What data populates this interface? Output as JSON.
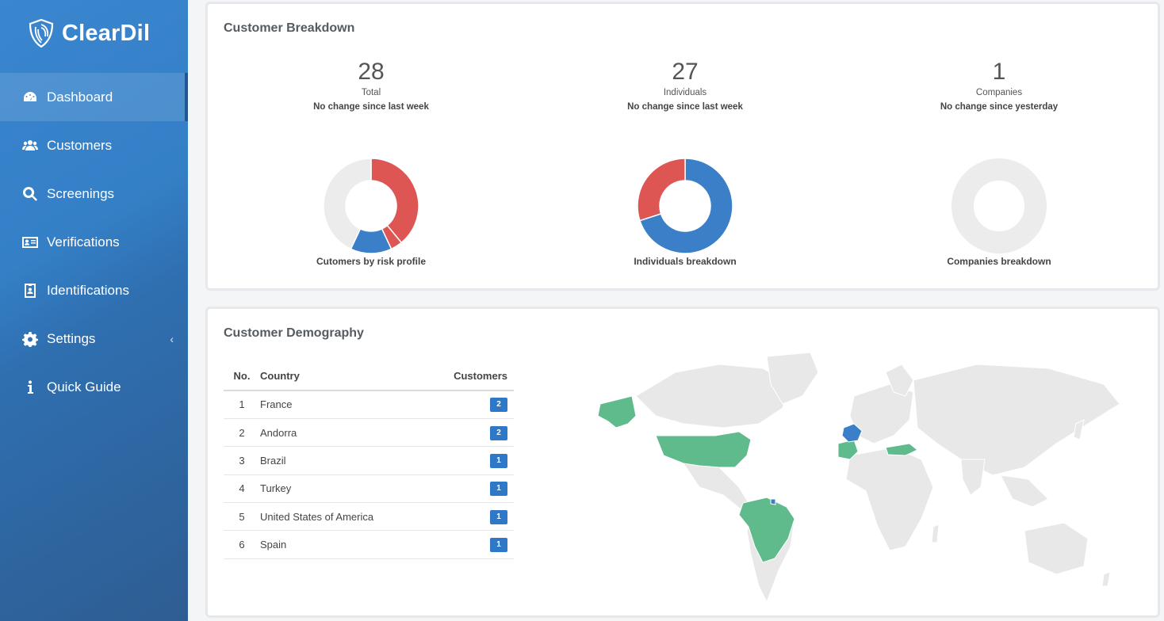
{
  "brand": {
    "name": "ClearDil",
    "logo": "shield-logo"
  },
  "sidebar": {
    "items": [
      {
        "label": "Dashboard",
        "icon": "dashboard-icon",
        "active": true
      },
      {
        "label": "Customers",
        "icon": "users-icon"
      },
      {
        "label": "Screenings",
        "icon": "search-icon"
      },
      {
        "label": "Verifications",
        "icon": "id-card-icon"
      },
      {
        "label": "Identifications",
        "icon": "id-badge-icon"
      },
      {
        "label": "Settings",
        "icon": "gear-icon",
        "has_chevron": true,
        "chevron": "‹"
      },
      {
        "label": "Quick Guide",
        "icon": "info-icon"
      }
    ]
  },
  "breakdown": {
    "title": "Customer Breakdown",
    "stats": [
      {
        "value": "28",
        "label": "Total",
        "sub": "No change since last week"
      },
      {
        "value": "27",
        "label": "Individuals",
        "sub": "No change since last week"
      },
      {
        "value": "1",
        "label": "Companies",
        "sub": "No change since yesterday"
      }
    ],
    "charts": [
      {
        "caption": "Cutomers by risk profile"
      },
      {
        "caption": "Individuals breakdown"
      },
      {
        "caption": "Companies breakdown"
      }
    ]
  },
  "chart_data": [
    {
      "type": "pie",
      "title": "Cutomers by risk profile",
      "slices": [
        {
          "value": 39,
          "color": "#de5653"
        },
        {
          "value": 4,
          "color": "#de5653"
        },
        {
          "value": 14,
          "color": "#3a7fc8"
        },
        {
          "value": 43,
          "color": "#ececec"
        }
      ]
    },
    {
      "type": "pie",
      "title": "Individuals breakdown",
      "slices": [
        {
          "value": 70,
          "color": "#3a7fc8"
        },
        {
          "value": 30,
          "color": "#de5653"
        }
      ]
    },
    {
      "type": "pie",
      "title": "Companies breakdown",
      "slices": [
        {
          "value": 100,
          "color": "#ececec"
        }
      ]
    }
  ],
  "demography": {
    "title": "Customer Demography",
    "columns": [
      "No.",
      "Country",
      "Customers"
    ],
    "rows": [
      {
        "no": "1",
        "country": "France",
        "customers": "2"
      },
      {
        "no": "2",
        "country": "Andorra",
        "customers": "2"
      },
      {
        "no": "3",
        "country": "Brazil",
        "customers": "1"
      },
      {
        "no": "4",
        "country": "Turkey",
        "customers": "1"
      },
      {
        "no": "5",
        "country": "United States of America",
        "customers": "1"
      },
      {
        "no": "6",
        "country": "Spain",
        "customers": "1"
      }
    ],
    "map_colors": {
      "land": "#e8e8e8",
      "highlight": "#5fba8c",
      "france": "#3a7fc8"
    }
  },
  "colors": {
    "accent": "#2f78c7",
    "risk_high": "#de5653",
    "neutral": "#ececec"
  }
}
